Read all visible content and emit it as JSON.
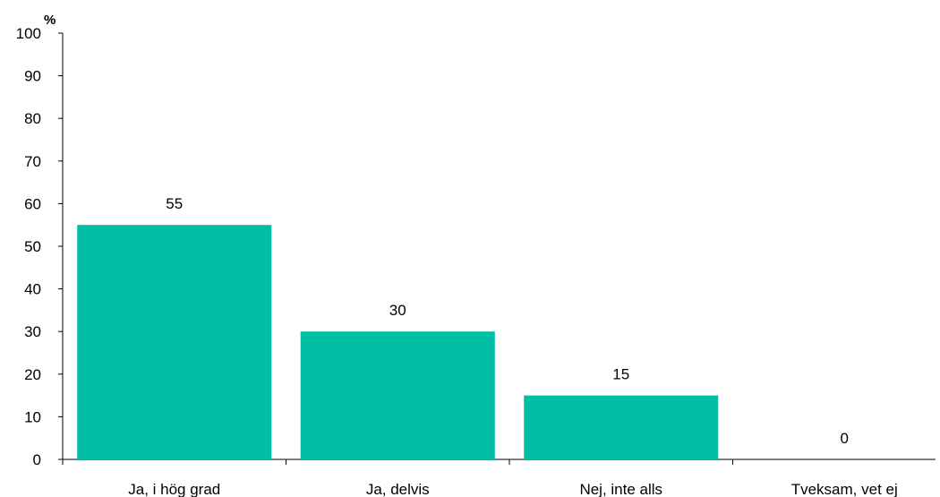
{
  "chart_data": {
    "type": "bar",
    "categories": [
      "Ja, i hög grad",
      "Ja, delvis",
      "Nej, inte alls",
      "Tveksam, vet ej"
    ],
    "values": [
      55,
      30,
      15,
      0
    ],
    "data_labels": [
      "55",
      "30",
      "15",
      "0"
    ],
    "title": "",
    "xlabel": "",
    "ylabel": "%",
    "ylim": [
      0,
      100
    ],
    "yticks": [
      0,
      10,
      20,
      30,
      40,
      50,
      60,
      70,
      80,
      90,
      100
    ],
    "ytick_labels": [
      "0",
      "10",
      "20",
      "30",
      "40",
      "50",
      "60",
      "70",
      "80",
      "90",
      "100"
    ],
    "grid": false,
    "legend": "none",
    "bar_color": "#00BFA5"
  }
}
